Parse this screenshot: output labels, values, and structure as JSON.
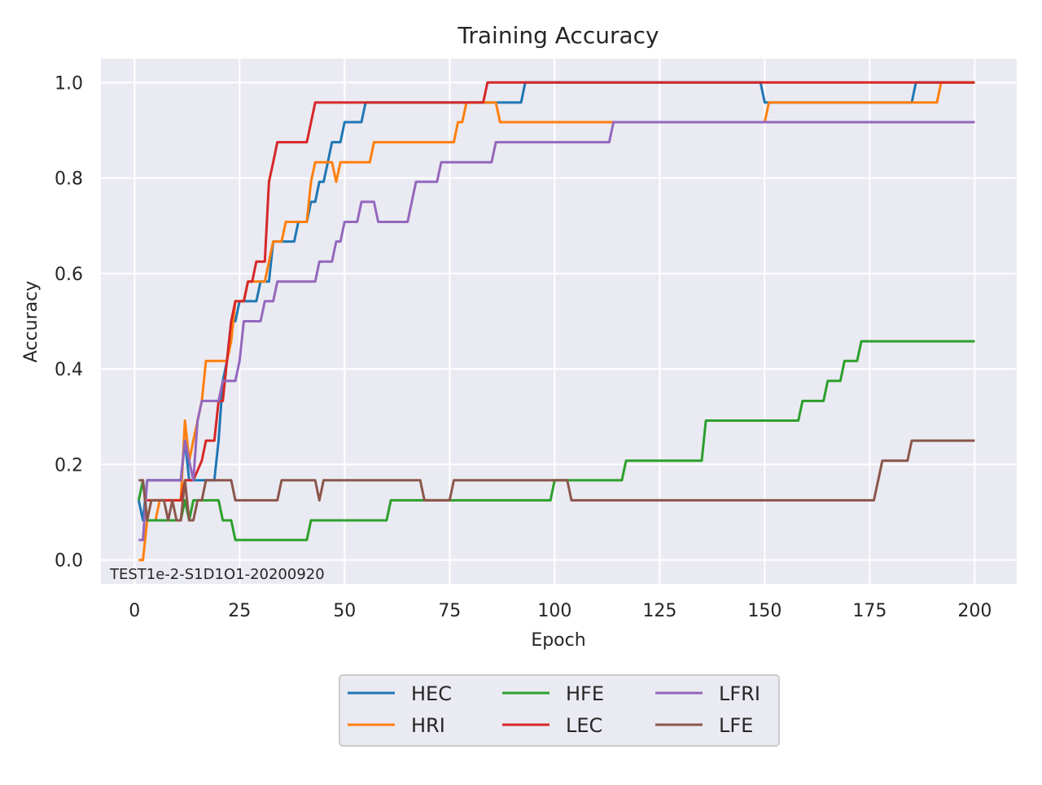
{
  "chart_data": {
    "type": "line",
    "title": "Training Accuracy",
    "xlabel": "Epoch",
    "ylabel": "Accuracy",
    "xlim": [
      -8,
      210
    ],
    "ylim": [
      -0.05,
      1.05
    ],
    "xticks": [
      0,
      25,
      50,
      75,
      100,
      125,
      150,
      175,
      200
    ],
    "yticks": [
      0.0,
      0.2,
      0.4,
      0.6,
      0.8,
      1.0
    ],
    "xtick_labels": [
      "0",
      "25",
      "50",
      "75",
      "100",
      "125",
      "150",
      "175",
      "200"
    ],
    "ytick_labels": [
      "0.0",
      "0.2",
      "0.4",
      "0.6",
      "0.8",
      "1.0"
    ],
    "grid": true,
    "legend_position": "bottom-center",
    "annotation": "TEST1e-2-S1D1O1-20200920",
    "series": [
      {
        "name": "HEC",
        "color": "#1f77b4",
        "points": [
          [
            1,
            0.125
          ],
          [
            2,
            0.083
          ],
          [
            3,
            0.167
          ],
          [
            11,
            0.167
          ],
          [
            12,
            0.25
          ],
          [
            13,
            0.167
          ],
          [
            19,
            0.167
          ],
          [
            20,
            0.25
          ],
          [
            21,
            0.375
          ],
          [
            22,
            0.417
          ],
          [
            23,
            0.5
          ],
          [
            24,
            0.5
          ],
          [
            25,
            0.542
          ],
          [
            29,
            0.542
          ],
          [
            30,
            0.583
          ],
          [
            32,
            0.583
          ],
          [
            33,
            0.667
          ],
          [
            38,
            0.667
          ],
          [
            39,
            0.708
          ],
          [
            41,
            0.708
          ],
          [
            42,
            0.75
          ],
          [
            43,
            0.75
          ],
          [
            44,
            0.792
          ],
          [
            45,
            0.792
          ],
          [
            46,
            0.833
          ],
          [
            47,
            0.875
          ],
          [
            49,
            0.875
          ],
          [
            50,
            0.917
          ],
          [
            54,
            0.917
          ],
          [
            55,
            0.958
          ],
          [
            86,
            0.958
          ],
          [
            92,
            0.958
          ],
          [
            93,
            1.0
          ],
          [
            149,
            1.0
          ],
          [
            150,
            0.958
          ],
          [
            185,
            0.958
          ],
          [
            186,
            1.0
          ],
          [
            200,
            1.0
          ]
        ]
      },
      {
        "name": "HRI",
        "color": "#ff7f0e",
        "points": [
          [
            1,
            0.0
          ],
          [
            2,
            0.0
          ],
          [
            3,
            0.083
          ],
          [
            4,
            0.083
          ],
          [
            5,
            0.083
          ],
          [
            6,
            0.125
          ],
          [
            11,
            0.125
          ],
          [
            12,
            0.292
          ],
          [
            13,
            0.208
          ],
          [
            14,
            0.25
          ],
          [
            16,
            0.333
          ],
          [
            17,
            0.417
          ],
          [
            22,
            0.417
          ],
          [
            23,
            0.458
          ],
          [
            24,
            0.542
          ],
          [
            26,
            0.542
          ],
          [
            27,
            0.583
          ],
          [
            31,
            0.583
          ],
          [
            32,
            0.625
          ],
          [
            33,
            0.667
          ],
          [
            35,
            0.667
          ],
          [
            36,
            0.708
          ],
          [
            41,
            0.708
          ],
          [
            42,
            0.792
          ],
          [
            43,
            0.833
          ],
          [
            47,
            0.833
          ],
          [
            48,
            0.792
          ],
          [
            49,
            0.833
          ],
          [
            56,
            0.833
          ],
          [
            57,
            0.875
          ],
          [
            76,
            0.875
          ],
          [
            77,
            0.917
          ],
          [
            78,
            0.917
          ],
          [
            79,
            0.958
          ],
          [
            86,
            0.958
          ],
          [
            87,
            0.917
          ],
          [
            114,
            0.917
          ],
          [
            150,
            0.917
          ],
          [
            151,
            0.958
          ],
          [
            191,
            0.958
          ],
          [
            192,
            1.0
          ],
          [
            200,
            1.0
          ]
        ]
      },
      {
        "name": "HFE",
        "color": "#2ca02c",
        "points": [
          [
            1,
            0.125
          ],
          [
            2,
            0.167
          ],
          [
            3,
            0.083
          ],
          [
            11,
            0.083
          ],
          [
            12,
            0.125
          ],
          [
            13,
            0.083
          ],
          [
            14,
            0.125
          ],
          [
            20,
            0.125
          ],
          [
            21,
            0.083
          ],
          [
            23,
            0.083
          ],
          [
            24,
            0.042
          ],
          [
            41,
            0.042
          ],
          [
            42,
            0.083
          ],
          [
            60,
            0.083
          ],
          [
            61,
            0.125
          ],
          [
            99,
            0.125
          ],
          [
            100,
            0.167
          ],
          [
            116,
            0.167
          ],
          [
            117,
            0.208
          ],
          [
            135,
            0.208
          ],
          [
            136,
            0.292
          ],
          [
            158,
            0.292
          ],
          [
            159,
            0.333
          ],
          [
            164,
            0.333
          ],
          [
            165,
            0.375
          ],
          [
            168,
            0.375
          ],
          [
            169,
            0.417
          ],
          [
            172,
            0.417
          ],
          [
            173,
            0.458
          ],
          [
            200,
            0.458
          ]
        ]
      },
      {
        "name": "LEC",
        "color": "#d62728",
        "points": [
          [
            3,
            0.125
          ],
          [
            11,
            0.125
          ],
          [
            12,
            0.167
          ],
          [
            14,
            0.167
          ],
          [
            16,
            0.208
          ],
          [
            17,
            0.25
          ],
          [
            19,
            0.25
          ],
          [
            20,
            0.333
          ],
          [
            21,
            0.333
          ],
          [
            22,
            0.417
          ],
          [
            23,
            0.5
          ],
          [
            24,
            0.542
          ],
          [
            26,
            0.542
          ],
          [
            27,
            0.583
          ],
          [
            28,
            0.583
          ],
          [
            29,
            0.625
          ],
          [
            31,
            0.625
          ],
          [
            32,
            0.792
          ],
          [
            33,
            0.833
          ],
          [
            34,
            0.875
          ],
          [
            41,
            0.875
          ],
          [
            43,
            0.958
          ],
          [
            83,
            0.958
          ],
          [
            84,
            1.0
          ],
          [
            200,
            1.0
          ]
        ]
      },
      {
        "name": "LFRI",
        "color": "#9467bd",
        "points": [
          [
            1,
            0.042
          ],
          [
            2,
            0.042
          ],
          [
            3,
            0.167
          ],
          [
            11,
            0.167
          ],
          [
            12,
            0.25
          ],
          [
            13,
            0.208
          ],
          [
            14,
            0.167
          ],
          [
            15,
            0.292
          ],
          [
            16,
            0.333
          ],
          [
            20,
            0.333
          ],
          [
            21,
            0.375
          ],
          [
            24,
            0.375
          ],
          [
            25,
            0.417
          ],
          [
            26,
            0.5
          ],
          [
            30,
            0.5
          ],
          [
            31,
            0.542
          ],
          [
            33,
            0.542
          ],
          [
            34,
            0.583
          ],
          [
            43,
            0.583
          ],
          [
            44,
            0.625
          ],
          [
            47,
            0.625
          ],
          [
            48,
            0.667
          ],
          [
            49,
            0.667
          ],
          [
            50,
            0.708
          ],
          [
            53,
            0.708
          ],
          [
            54,
            0.75
          ],
          [
            57,
            0.75
          ],
          [
            58,
            0.708
          ],
          [
            65,
            0.708
          ],
          [
            67,
            0.792
          ],
          [
            72,
            0.792
          ],
          [
            73,
            0.833
          ],
          [
            85,
            0.833
          ],
          [
            86,
            0.875
          ],
          [
            113,
            0.875
          ],
          [
            114,
            0.917
          ],
          [
            200,
            0.917
          ]
        ]
      },
      {
        "name": "LFE",
        "color": "#8c564b",
        "points": [
          [
            1,
            0.167
          ],
          [
            2,
            0.167
          ],
          [
            3,
            0.083
          ],
          [
            4,
            0.125
          ],
          [
            7,
            0.125
          ],
          [
            8,
            0.083
          ],
          [
            9,
            0.125
          ],
          [
            10,
            0.083
          ],
          [
            11,
            0.083
          ],
          [
            12,
            0.167
          ],
          [
            13,
            0.083
          ],
          [
            14,
            0.083
          ],
          [
            15,
            0.125
          ],
          [
            16,
            0.125
          ],
          [
            17,
            0.167
          ],
          [
            23,
            0.167
          ],
          [
            24,
            0.125
          ],
          [
            34,
            0.125
          ],
          [
            35,
            0.167
          ],
          [
            43,
            0.167
          ],
          [
            44,
            0.125
          ],
          [
            45,
            0.167
          ],
          [
            68,
            0.167
          ],
          [
            69,
            0.125
          ],
          [
            75,
            0.125
          ],
          [
            76,
            0.167
          ],
          [
            103,
            0.167
          ],
          [
            104,
            0.125
          ],
          [
            176,
            0.125
          ],
          [
            178,
            0.208
          ],
          [
            184,
            0.208
          ],
          [
            185,
            0.25
          ],
          [
            200,
            0.25
          ]
        ]
      }
    ]
  }
}
